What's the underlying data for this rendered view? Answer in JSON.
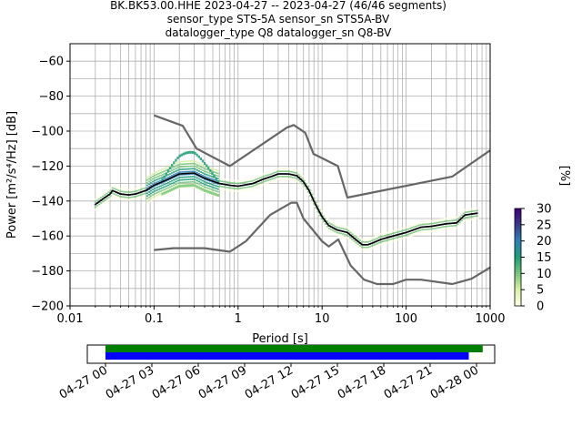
{
  "title": {
    "line1": "BK.BK53.00.HHE   2023-04-27 -- 2023-04-27  (46/46 segments)",
    "line2": "sensor_type STS-5A sensor_sn STS5A-BV",
    "line3": "datalogger_type Q8 datalogger_sn Q8-BV"
  },
  "colorbar": {
    "label": "[%]",
    "ticks": [
      "0",
      "5",
      "10",
      "15",
      "20",
      "25",
      "30"
    ],
    "range": [
      0,
      30
    ],
    "colors": [
      "#ffffe5",
      "#d9f0a3",
      "#78c679",
      "#1d9e78",
      "#2c7fb8",
      "#3a3a8c",
      "#3f007d"
    ]
  },
  "colors": {
    "noise_model": "#666666",
    "mode": "#000000",
    "coverage_data": "#008000",
    "coverage_gaps": "#0000ff",
    "grid": "#b0b0b0"
  },
  "chart_data": [
    {
      "type": "ppsd",
      "x_scale": "log",
      "xlabel": "Period [s]",
      "ylabel": "Power [m²/s⁴/Hz] [dB]",
      "xlim": [
        0.01,
        1000
      ],
      "ylim": [
        -200,
        -50
      ],
      "x_ticks": [
        {
          "value": 0.01,
          "label": "0.01"
        },
        {
          "value": 0.1,
          "label": "0.1"
        },
        {
          "value": 1,
          "label": "1"
        },
        {
          "value": 10,
          "label": "10"
        },
        {
          "value": 100,
          "label": "100"
        },
        {
          "value": 1000,
          "label": "1000"
        }
      ],
      "y_ticks": [
        -60,
        -80,
        -100,
        -120,
        -140,
        -160,
        -180,
        -200
      ],
      "grid": true,
      "series": [
        {
          "kind": "noise_model_high",
          "points": [
            [
              0.1,
              -91
            ],
            [
              0.22,
              -97
            ],
            [
              0.32,
              -110
            ],
            [
              0.8,
              -120
            ],
            [
              3.8,
              -98
            ],
            [
              4.6,
              -96.5
            ],
            [
              6.3,
              -101
            ],
            [
              7.9,
              -113
            ],
            [
              15.4,
              -120
            ],
            [
              20,
              -138
            ],
            [
              354.8,
              -126
            ],
            [
              1000,
              -111
            ]
          ]
        },
        {
          "kind": "noise_model_low",
          "points": [
            [
              0.1,
              -168
            ],
            [
              0.17,
              -167
            ],
            [
              0.4,
              -167
            ],
            [
              0.8,
              -169
            ],
            [
              1.24,
              -163
            ],
            [
              2.4,
              -148
            ],
            [
              4.3,
              -141
            ],
            [
              5,
              -141
            ],
            [
              6,
              -150
            ],
            [
              10,
              -163
            ],
            [
              12,
              -166
            ],
            [
              15.6,
              -162
            ],
            [
              21.9,
              -177
            ],
            [
              31.6,
              -185
            ],
            [
              45,
              -187.5
            ],
            [
              70,
              -187.5
            ],
            [
              100,
              -185
            ],
            [
              150,
              -185
            ],
            [
              354.8,
              -187.5
            ],
            [
              600,
              -184.5
            ],
            [
              1000,
              -178
            ]
          ]
        },
        {
          "kind": "mode",
          "points": [
            [
              0.02,
              -142
            ],
            [
              0.026,
              -138
            ],
            [
              0.03,
              -136
            ],
            [
              0.032,
              -134
            ],
            [
              0.04,
              -136
            ],
            [
              0.05,
              -136.5
            ],
            [
              0.06,
              -136
            ],
            [
              0.08,
              -134
            ],
            [
              0.1,
              -131
            ],
            [
              0.14,
              -128
            ],
            [
              0.2,
              -124.5
            ],
            [
              0.3,
              -124
            ],
            [
              0.4,
              -127
            ],
            [
              0.6,
              -130
            ],
            [
              0.8,
              -131
            ],
            [
              1,
              -131.5
            ],
            [
              1.5,
              -130
            ],
            [
              2,
              -127.5
            ],
            [
              2.5,
              -126
            ],
            [
              3,
              -124.5
            ],
            [
              4,
              -124.5
            ],
            [
              5,
              -125.5
            ],
            [
              6,
              -129
            ],
            [
              7,
              -134
            ],
            [
              8,
              -140
            ],
            [
              9,
              -145
            ],
            [
              10,
              -149
            ],
            [
              12,
              -154
            ],
            [
              15,
              -156.5
            ],
            [
              20,
              -158
            ],
            [
              25,
              -162
            ],
            [
              30,
              -165
            ],
            [
              35,
              -165
            ],
            [
              40,
              -164
            ],
            [
              50,
              -162
            ],
            [
              70,
              -160
            ],
            [
              100,
              -158
            ],
            [
              150,
              -155
            ],
            [
              200,
              -154.5
            ],
            [
              300,
              -153
            ],
            [
              400,
              -152.5
            ],
            [
              500,
              -148
            ],
            [
              700,
              -147
            ]
          ]
        }
      ]
    },
    {
      "type": "coverage",
      "x_ticks": [
        "04-27 00",
        "04-27 03",
        "04-27 06",
        "04-27 09",
        "04-27 12",
        "04-27 15",
        "04-27 18",
        "04-27 21",
        "04-28 00"
      ],
      "bars": [
        {
          "kind": "data",
          "start_hour": 0,
          "end_hour": 24.4
        },
        {
          "kind": "processed",
          "start_hour": 0,
          "end_hour": 23.5
        }
      ]
    }
  ]
}
